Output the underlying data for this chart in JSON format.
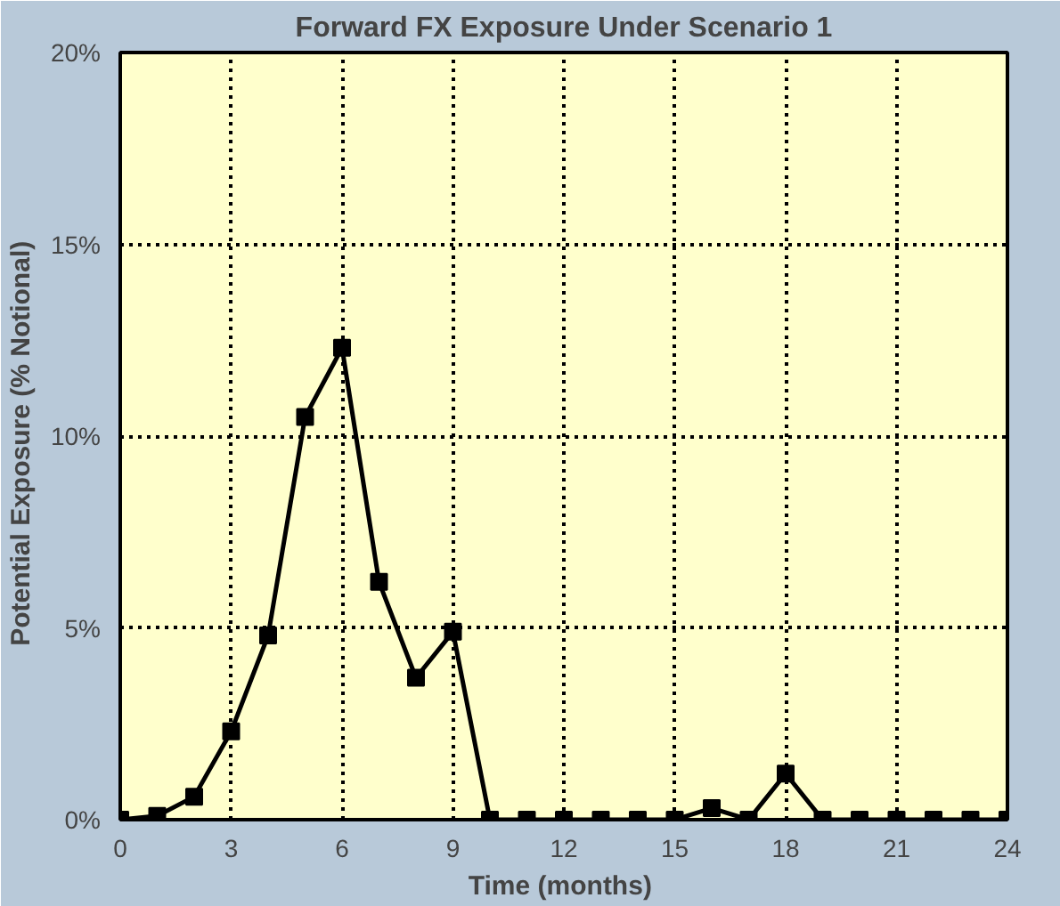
{
  "chart_data": {
    "type": "line",
    "title": "Forward FX Exposure Under Scenario 1",
    "xlabel": "Time  (months)",
    "ylabel": "Potential  Exposure  (% Notional)",
    "x": [
      0,
      1,
      2,
      3,
      4,
      5,
      6,
      7,
      8,
      9,
      10,
      11,
      12,
      13,
      14,
      15,
      16,
      17,
      18,
      19,
      20,
      21,
      22,
      23,
      24
    ],
    "series": [
      {
        "color": "#000000",
        "values": [
          0,
          0.1,
          0.6,
          2.3,
          4.8,
          10.5,
          12.3,
          6.2,
          3.7,
          4.9,
          0,
          0,
          0,
          0,
          0,
          0,
          0.3,
          0,
          1.2,
          0,
          0,
          0,
          0,
          0,
          0
        ]
      }
    ],
    "xlim": [
      0,
      24
    ],
    "xticks": [
      0,
      3,
      6,
      9,
      12,
      15,
      18,
      21,
      24
    ],
    "ylim": [
      0,
      20
    ],
    "yticks": [
      {
        "value": 0,
        "label": "0%"
      },
      {
        "value": 5,
        "label": "5%"
      },
      {
        "value": 10,
        "label": "10%"
      },
      {
        "value": 15,
        "label": "15%"
      },
      {
        "value": 20,
        "label": "20%"
      }
    ],
    "grid": true,
    "marker": "square",
    "line_style": "solid"
  }
}
